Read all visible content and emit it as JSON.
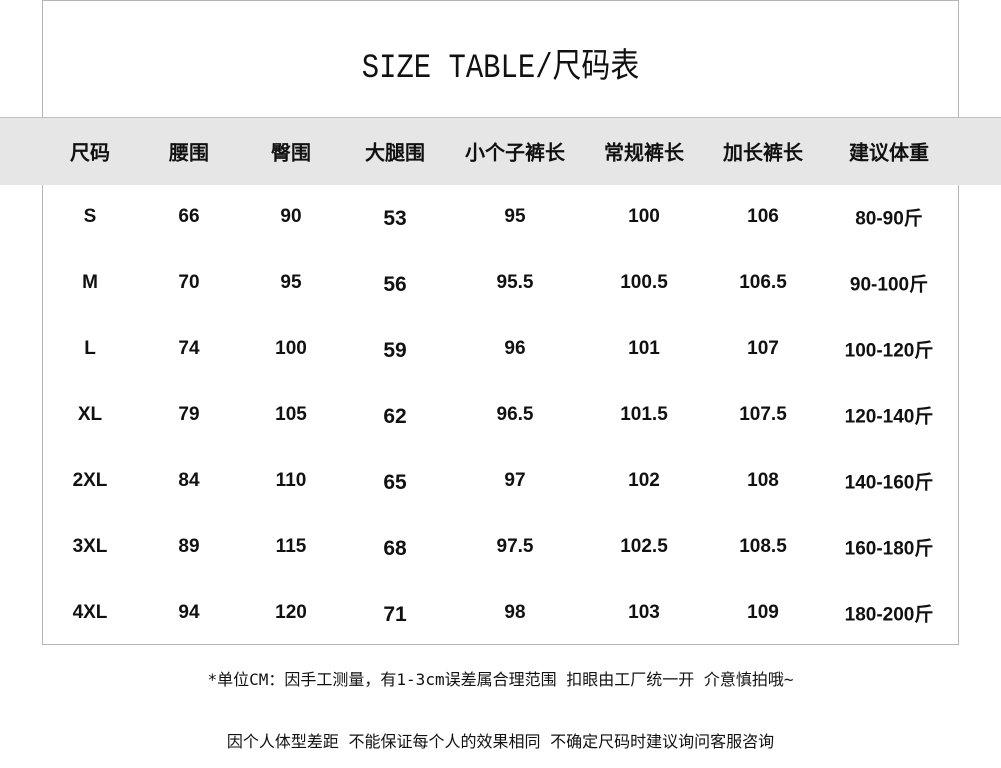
{
  "title": "SIZE TABLE/尺码表",
  "headers": [
    "尺码",
    "腰围",
    "臀围",
    "大腿围",
    "小个子裤长",
    "常规裤长",
    "加长裤长",
    "建议体重"
  ],
  "rows": [
    [
      "S",
      "66",
      "90",
      "53",
      "95",
      "100",
      "106",
      "80-90斤"
    ],
    [
      "M",
      "70",
      "95",
      "56",
      "95.5",
      "100.5",
      "106.5",
      "90-100斤"
    ],
    [
      "L",
      "74",
      "100",
      "59",
      "96",
      "101",
      "107",
      "100-120斤"
    ],
    [
      "XL",
      "79",
      "105",
      "62",
      "96.5",
      "101.5",
      "107.5",
      "120-140斤"
    ],
    [
      "2XL",
      "84",
      "110",
      "65",
      "97",
      "102",
      "108",
      "140-160斤"
    ],
    [
      "3XL",
      "89",
      "115",
      "68",
      "97.5",
      "102.5",
      "108.5",
      "160-180斤"
    ],
    [
      "4XL",
      "94",
      "120",
      "71",
      "98",
      "103",
      "109",
      "180-200斤"
    ]
  ],
  "notes": [
    "*单位CM：因手工测量，有1-3cm误差属合理范围 扣眼由工厂统一开 介意慎拍哦~",
    "因个人体型差距 不能保证每个人的效果相同 不确定尺码时建议询问客服咨询"
  ],
  "colors": {
    "header_band": "#e6e6e6",
    "border": "#b5b5b5"
  }
}
